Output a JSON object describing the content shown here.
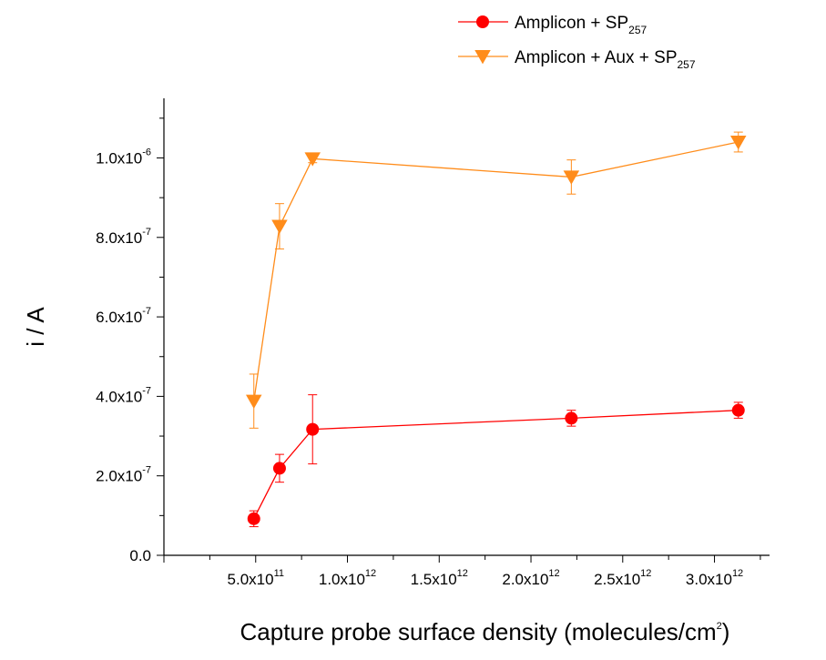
{
  "chart_data": {
    "type": "scatter",
    "xlabel": {
      "main": "Capture probe surface density (molecules/cm",
      "sup": "2",
      "end": ")"
    },
    "ylabel": "i / A",
    "xlim": [
      0,
      3300000000000.0
    ],
    "ylim": [
      0,
      1.15e-06
    ],
    "x_ticks": [
      {
        "value": 500000000000.0,
        "mantissa": "5.0x10",
        "exp": "11"
      },
      {
        "value": 1000000000000.0,
        "mantissa": "1.0x10",
        "exp": "12"
      },
      {
        "value": 1500000000000.0,
        "mantissa": "1.5x10",
        "exp": "12"
      },
      {
        "value": 2000000000000.0,
        "mantissa": "2.0x10",
        "exp": "12"
      },
      {
        "value": 2500000000000.0,
        "mantissa": "2.5x10",
        "exp": "12"
      },
      {
        "value": 3000000000000.0,
        "mantissa": "3.0x10",
        "exp": "12"
      }
    ],
    "y_ticks": [
      {
        "value": 0,
        "mantissa": "0.0",
        "exp": ""
      },
      {
        "value": 2e-07,
        "mantissa": "2.0x10",
        "exp": "-7"
      },
      {
        "value": 4e-07,
        "mantissa": "4.0x10",
        "exp": "-7"
      },
      {
        "value": 6e-07,
        "mantissa": "6.0x10",
        "exp": "-7"
      },
      {
        "value": 8e-07,
        "mantissa": "8.0x10",
        "exp": "-7"
      },
      {
        "value": 1e-06,
        "mantissa": "1.0x10",
        "exp": "-6"
      }
    ],
    "grid": false,
    "legend_position": "top-right",
    "series": [
      {
        "name": "Amplicon + SP",
        "name_sub": "257",
        "color": "#ff0000",
        "marker": "circle",
        "x": [
          490000000000.0,
          630000000000.0,
          810000000000.0,
          2220000000000.0,
          3130000000000.0
        ],
        "y": [
          9.2e-08,
          2.19e-07,
          3.17e-07,
          3.45e-07,
          3.65e-07
        ],
        "err_upper": [
          2e-08,
          3.5e-08,
          8.7e-08,
          2e-08,
          2e-08
        ],
        "err_lower": [
          2e-08,
          3.5e-08,
          8.7e-08,
          2e-08,
          2e-08
        ]
      },
      {
        "name": "Amplicon + Aux + SP",
        "name_sub": "257",
        "color": "#ff8c1a",
        "marker": "triangle-down",
        "x": [
          490000000000.0,
          630000000000.0,
          810000000000.0,
          2220000000000.0,
          3130000000000.0
        ],
        "y": [
          3.88e-07,
          8.28e-07,
          9.98e-07,
          9.52e-07,
          1.04e-06
        ],
        "err_upper": [
          6.8e-08,
          5.7e-08,
          1e-08,
          4.3e-08,
          2.5e-08
        ],
        "err_lower": [
          6.8e-08,
          5.7e-08,
          1e-08,
          4.3e-08,
          2.5e-08
        ]
      }
    ]
  }
}
